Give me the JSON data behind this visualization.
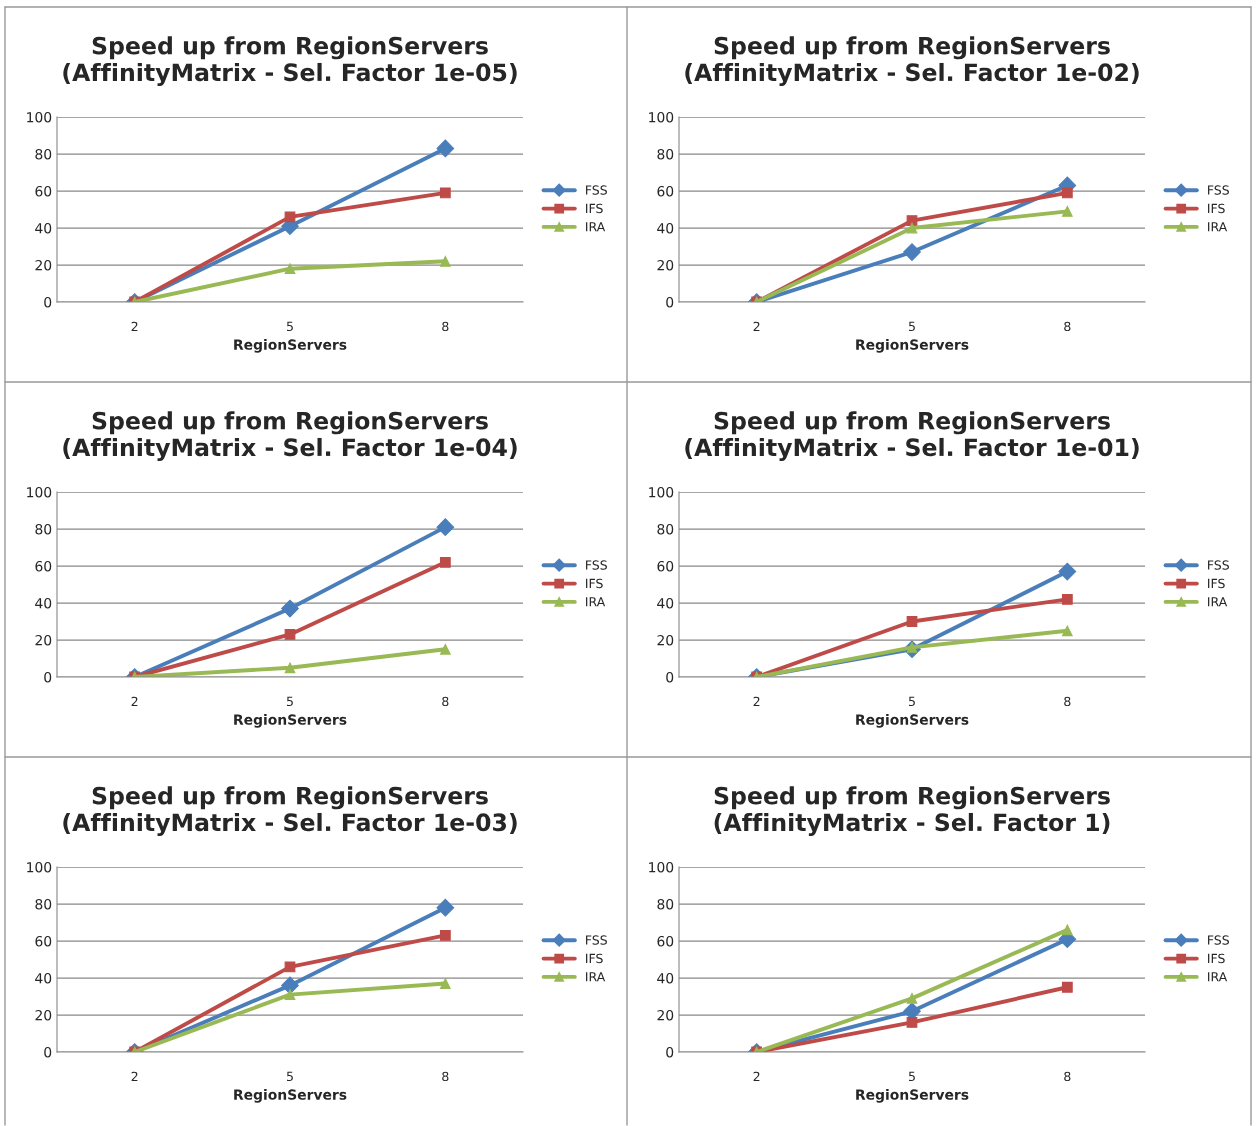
{
  "chart_data": [
    {
      "type": "line",
      "title": "Speed up from RegionServers\n(AffinityMatrix - Sel. Factor 1e-05)",
      "xlabel": "RegionServers",
      "categories": [
        "2",
        "5",
        "8"
      ],
      "ylim": [
        0,
        100
      ],
      "yticks": [
        0,
        20,
        40,
        60,
        80,
        100
      ],
      "grid": "y",
      "legend": "right",
      "series": [
        {
          "name": "FSS",
          "color": "#4a7ebb",
          "marker": "diamond",
          "values": [
            0,
            41,
            83
          ]
        },
        {
          "name": "IFS",
          "color": "#be4b48",
          "marker": "square",
          "values": [
            0,
            46,
            59
          ]
        },
        {
          "name": "IRA",
          "color": "#98b954",
          "marker": "triangle",
          "values": [
            0,
            18,
            22
          ]
        }
      ]
    },
    {
      "type": "line",
      "title": "Speed up from RegionServers\n(AffinityMatrix - Sel. Factor 1e-02)",
      "xlabel": "RegionServers",
      "categories": [
        "2",
        "5",
        "8"
      ],
      "ylim": [
        0,
        100
      ],
      "yticks": [
        0,
        20,
        40,
        60,
        80,
        100
      ],
      "grid": "y",
      "legend": "right",
      "series": [
        {
          "name": "FSS",
          "color": "#4a7ebb",
          "marker": "diamond",
          "values": [
            0,
            27,
            63
          ]
        },
        {
          "name": "IFS",
          "color": "#be4b48",
          "marker": "square",
          "values": [
            0,
            44,
            59
          ]
        },
        {
          "name": "IRA",
          "color": "#98b954",
          "marker": "triangle",
          "values": [
            0,
            40,
            49
          ]
        }
      ]
    },
    {
      "type": "line",
      "title": "Speed up from RegionServers\n(AffinityMatrix - Sel. Factor 1e-04)",
      "xlabel": "RegionServers",
      "categories": [
        "2",
        "5",
        "8"
      ],
      "ylim": [
        0,
        100
      ],
      "yticks": [
        0,
        20,
        40,
        60,
        80,
        100
      ],
      "grid": "y",
      "legend": "right",
      "series": [
        {
          "name": "FSS",
          "color": "#4a7ebb",
          "marker": "diamond",
          "values": [
            0,
            37,
            81
          ]
        },
        {
          "name": "IFS",
          "color": "#be4b48",
          "marker": "square",
          "values": [
            0,
            23,
            62
          ]
        },
        {
          "name": "IRA",
          "color": "#98b954",
          "marker": "triangle",
          "values": [
            0,
            5,
            15
          ]
        }
      ]
    },
    {
      "type": "line",
      "title": "Speed up from RegionServers\n(AffinityMatrix - Sel. Factor 1e-01)",
      "xlabel": "RegionServers",
      "categories": [
        "2",
        "5",
        "8"
      ],
      "ylim": [
        0,
        100
      ],
      "yticks": [
        0,
        20,
        40,
        60,
        80,
        100
      ],
      "grid": "y",
      "legend": "right",
      "series": [
        {
          "name": "FSS",
          "color": "#4a7ebb",
          "marker": "diamond",
          "values": [
            0,
            15,
            57
          ]
        },
        {
          "name": "IFS",
          "color": "#be4b48",
          "marker": "square",
          "values": [
            0,
            30,
            42
          ]
        },
        {
          "name": "IRA",
          "color": "#98b954",
          "marker": "triangle",
          "values": [
            0,
            16,
            25
          ]
        }
      ]
    },
    {
      "type": "line",
      "title": "Speed up from RegionServers\n(AffinityMatrix - Sel. Factor 1e-03)",
      "xlabel": "RegionServers",
      "categories": [
        "2",
        "5",
        "8"
      ],
      "ylim": [
        0,
        100
      ],
      "yticks": [
        0,
        20,
        40,
        60,
        80,
        100
      ],
      "grid": "y",
      "legend": "right",
      "series": [
        {
          "name": "FSS",
          "color": "#4a7ebb",
          "marker": "diamond",
          "values": [
            0,
            36,
            78
          ]
        },
        {
          "name": "IFS",
          "color": "#be4b48",
          "marker": "square",
          "values": [
            0,
            46,
            63
          ]
        },
        {
          "name": "IRA",
          "color": "#98b954",
          "marker": "triangle",
          "values": [
            0,
            31,
            37
          ]
        }
      ]
    },
    {
      "type": "line",
      "title": "Speed up from RegionServers\n(AffinityMatrix - Sel. Factor 1)",
      "xlabel": "RegionServers",
      "categories": [
        "2",
        "5",
        "8"
      ],
      "ylim": [
        0,
        100
      ],
      "yticks": [
        0,
        20,
        40,
        60,
        80,
        100
      ],
      "grid": "y",
      "legend": "right",
      "series": [
        {
          "name": "FSS",
          "color": "#4a7ebb",
          "marker": "diamond",
          "values": [
            0,
            22,
            61
          ]
        },
        {
          "name": "IFS",
          "color": "#be4b48",
          "marker": "square",
          "values": [
            0,
            16,
            35
          ]
        },
        {
          "name": "IRA",
          "color": "#98b954",
          "marker": "triangle",
          "values": [
            0,
            29,
            66
          ]
        }
      ]
    }
  ]
}
